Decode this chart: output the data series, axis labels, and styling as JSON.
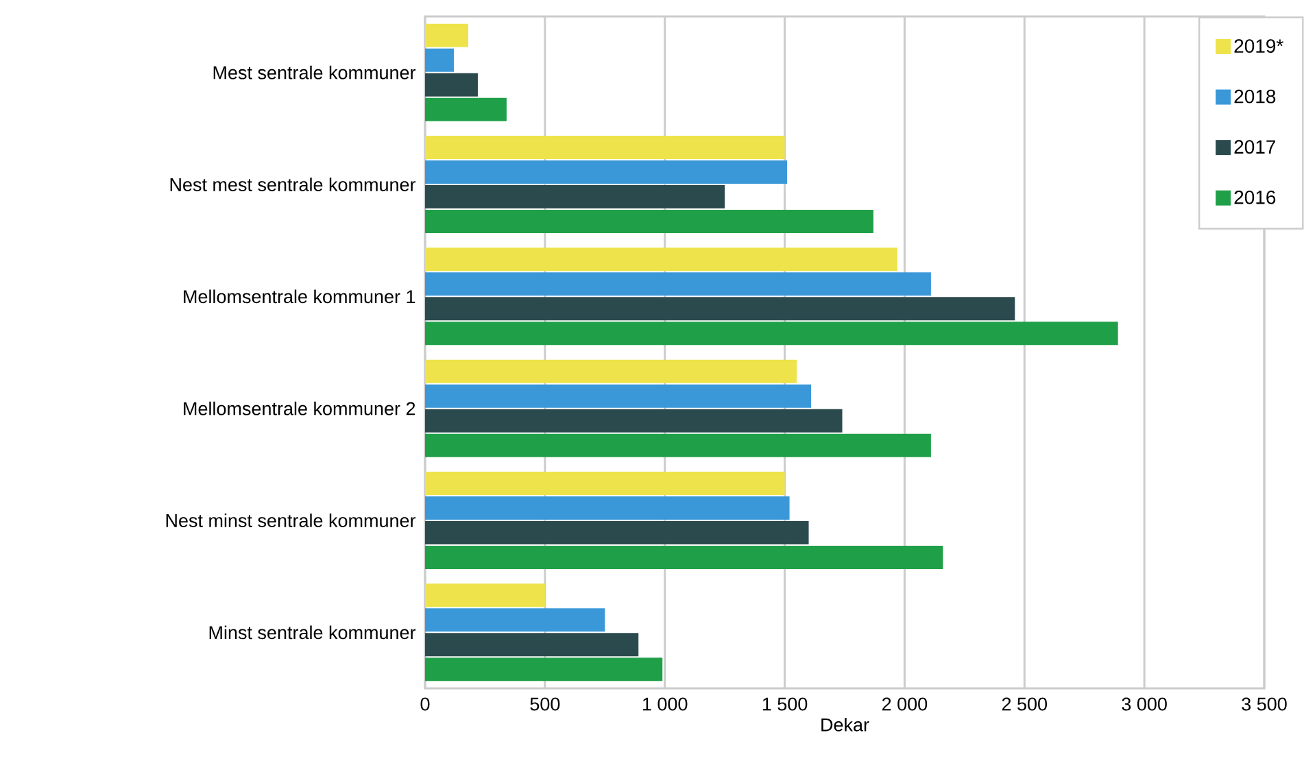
{
  "chart_data": {
    "type": "bar",
    "orientation": "horizontal",
    "xlabel": "Dekar",
    "categories": [
      "Mest sentrale kommuner",
      "Nest mest sentrale kommuner",
      "Mellomsentrale kommuner 1",
      "Mellomsentrale kommuner 2",
      "Nest minst sentrale kommuner",
      "Minst sentrale kommuner"
    ],
    "series": [
      {
        "name": "2019*",
        "color": "#eee34a",
        "values": [
          180,
          1500,
          1970,
          1550,
          1500,
          500
        ]
      },
      {
        "name": "2018",
        "color": "#3a98d8",
        "values": [
          120,
          1510,
          2110,
          1610,
          1520,
          750
        ]
      },
      {
        "name": "2017",
        "color": "#2b4a4e",
        "values": [
          220,
          1250,
          2460,
          1740,
          1600,
          890
        ]
      },
      {
        "name": "2016",
        "color": "#1fa048",
        "values": [
          340,
          1870,
          2890,
          2110,
          2160,
          990
        ]
      }
    ],
    "xlim": [
      0,
      3500
    ],
    "xticks": [
      0,
      500,
      {
        "value": 1000,
        "label": "1 000"
      },
      {
        "value": 1500,
        "label": "1 500"
      },
      {
        "value": 2000,
        "label": "2 000"
      },
      {
        "value": 2500,
        "label": "2 500"
      },
      {
        "value": 3000,
        "label": "3 000"
      },
      {
        "value": 3500,
        "label": "3 500"
      }
    ],
    "grid": "x",
    "legend": "top right"
  }
}
